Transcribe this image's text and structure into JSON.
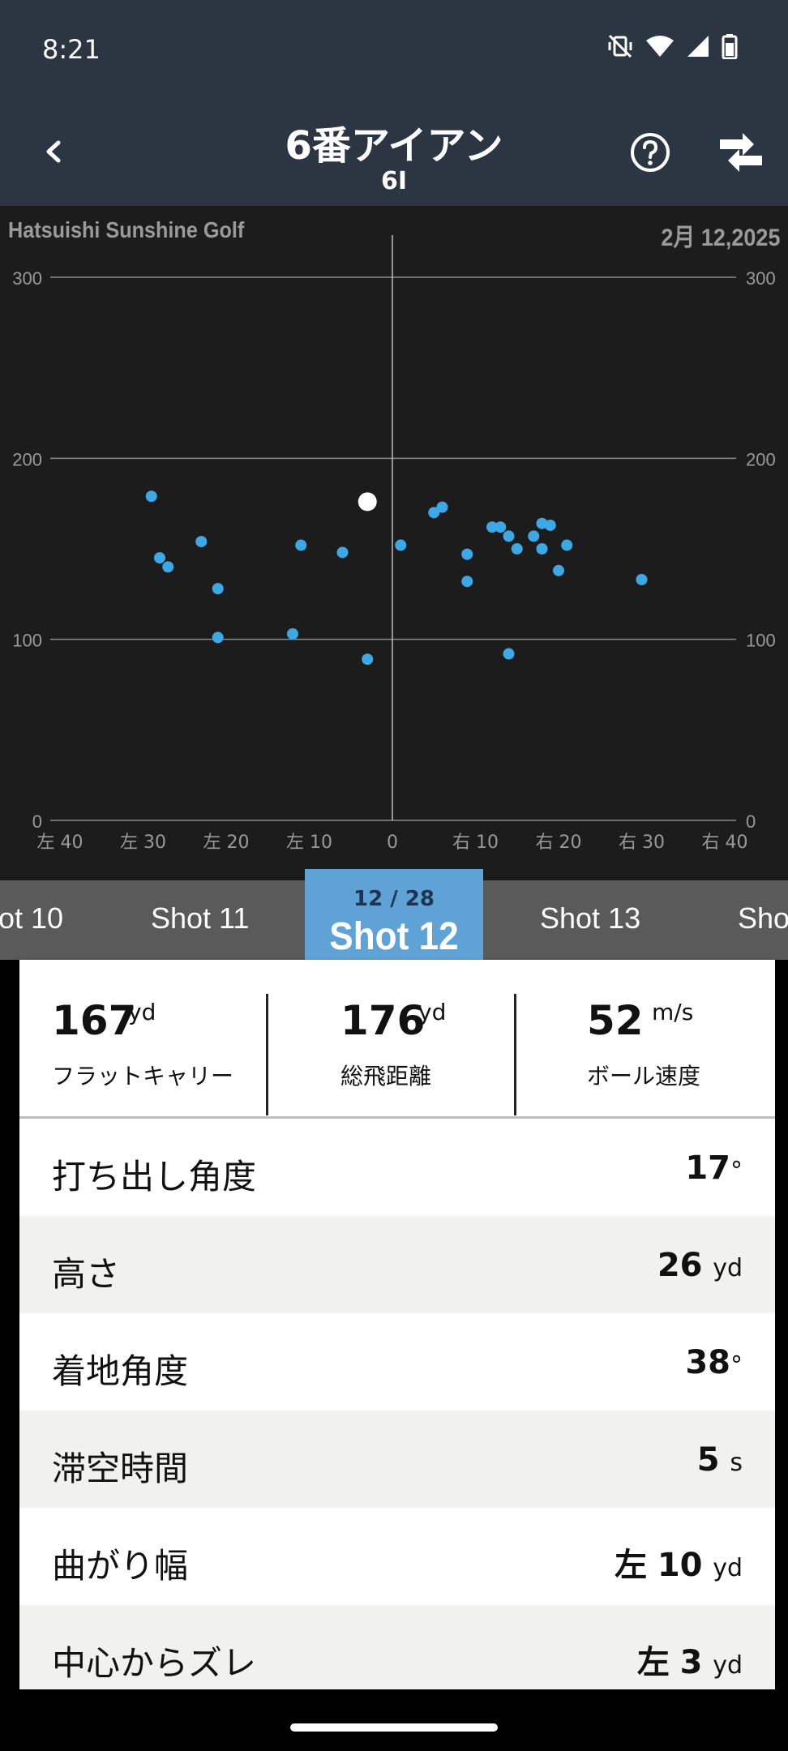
{
  "status_bar": {
    "time": "8:21"
  },
  "app_bar": {
    "title": "6番アイアン",
    "subtitle": "6I"
  },
  "chart_data": {
    "type": "scatter",
    "course": "Hatsuishi Sunshine Golf",
    "date": "2月 12,2025",
    "x_tick_labels": [
      "左 40",
      "左 30",
      "左 20",
      "左 10",
      "0",
      "右 10",
      "右 20",
      "右 30",
      "右 40"
    ],
    "x_ticks": [
      -40,
      -30,
      -20,
      -10,
      0,
      10,
      20,
      30,
      40
    ],
    "y_ticks": [
      0,
      100,
      200,
      300
    ],
    "xlim": [
      -40,
      40
    ],
    "ylim": [
      0,
      300
    ],
    "selected_point": {
      "x": -3,
      "y": 176
    },
    "points": [
      {
        "x": -29,
        "y": 179
      },
      {
        "x": -28,
        "y": 145
      },
      {
        "x": -27,
        "y": 140
      },
      {
        "x": -23,
        "y": 154
      },
      {
        "x": -21,
        "y": 128
      },
      {
        "x": -21,
        "y": 101
      },
      {
        "x": -12,
        "y": 103
      },
      {
        "x": -11,
        "y": 152
      },
      {
        "x": -6,
        "y": 148
      },
      {
        "x": -3,
        "y": 89
      },
      {
        "x": 1,
        "y": 152
      },
      {
        "x": 5,
        "y": 170
      },
      {
        "x": 6,
        "y": 173
      },
      {
        "x": 9,
        "y": 147
      },
      {
        "x": 9,
        "y": 132
      },
      {
        "x": 12,
        "y": 162
      },
      {
        "x": 13,
        "y": 162
      },
      {
        "x": 14,
        "y": 157
      },
      {
        "x": 14,
        "y": 92
      },
      {
        "x": 15,
        "y": 150
      },
      {
        "x": 17,
        "y": 157
      },
      {
        "x": 18,
        "y": 164
      },
      {
        "x": 18,
        "y": 150
      },
      {
        "x": 19,
        "y": 163
      },
      {
        "x": 20,
        "y": 138
      },
      {
        "x": 21,
        "y": 152
      },
      {
        "x": 30,
        "y": 133
      }
    ]
  },
  "shot_tabs": {
    "prev2": "ot 10",
    "prev1": "Shot 11",
    "active_counter": "12 / 28",
    "active": "Shot 12",
    "next1": "Shot 13",
    "next2": "Sho"
  },
  "summary": [
    {
      "value": "167",
      "unit": "yd",
      "label": "フラットキャリー"
    },
    {
      "value": "176",
      "unit": "yd",
      "label": "総飛距離"
    },
    {
      "value": "52",
      "unit": "m/s",
      "label": "ボール速度"
    }
  ],
  "metrics": [
    {
      "label": "打ち出し角度",
      "prefix": "",
      "value": "17",
      "unit": "°"
    },
    {
      "label": "高さ",
      "prefix": "",
      "value": "26",
      "unit": "yd"
    },
    {
      "label": "着地角度",
      "prefix": "",
      "value": "38",
      "unit": "°"
    },
    {
      "label": "滞空時間",
      "prefix": "",
      "value": "5",
      "unit": "s"
    },
    {
      "label": "曲がり幅",
      "prefix": "左",
      "value": "10",
      "unit": "yd"
    },
    {
      "label": "中心からズレ",
      "prefix": "左",
      "value": "3",
      "unit": "yd"
    }
  ],
  "colors": {
    "header": "#2c3642",
    "point": "#3da8e6",
    "active_tab": "#5fa2d6"
  }
}
